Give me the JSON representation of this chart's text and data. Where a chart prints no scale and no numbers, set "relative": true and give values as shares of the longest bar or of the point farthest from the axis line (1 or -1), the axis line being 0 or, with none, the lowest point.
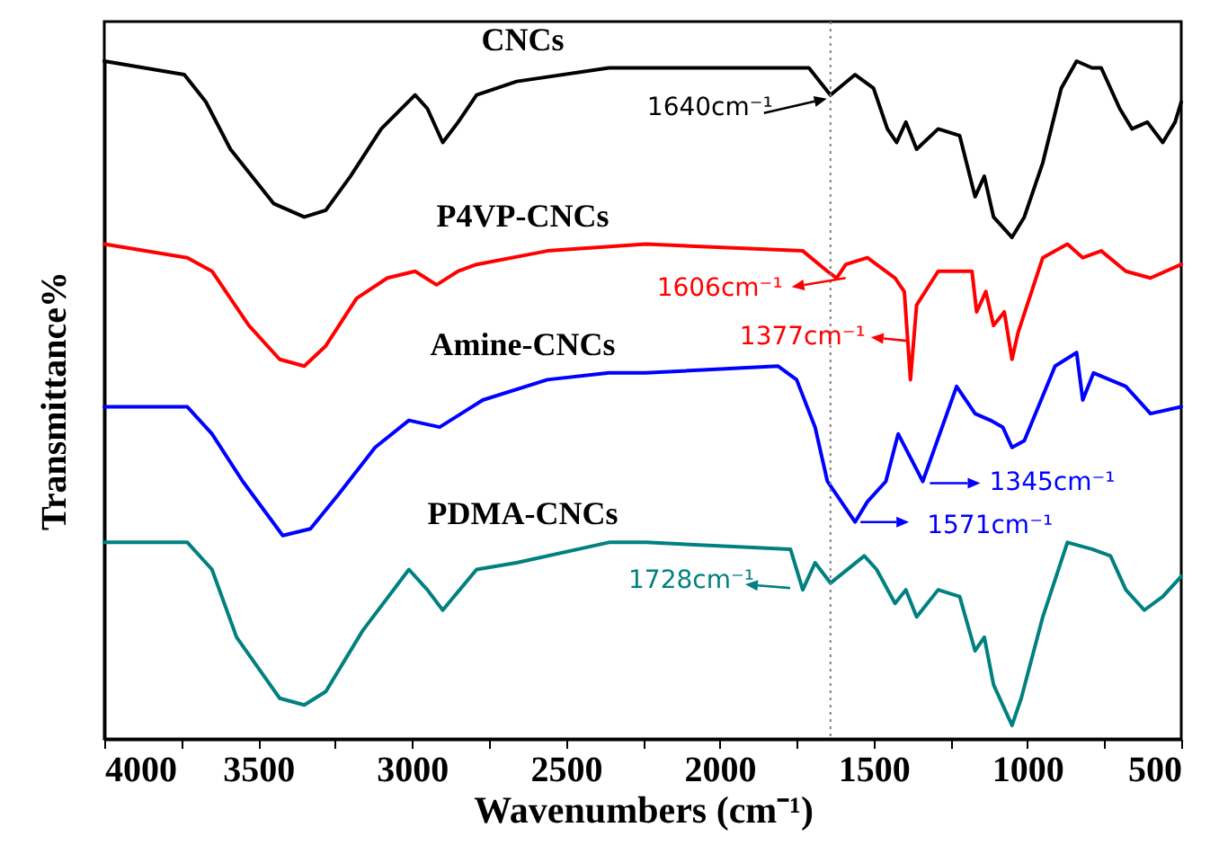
{
  "chart_data": {
    "type": "line",
    "relative": true,
    "xlabel": "Wavenumbers (cm⁻¹)",
    "ylabel": "Transmittance%",
    "xlim": [
      4000,
      500
    ],
    "xticks": [
      4000,
      {
        "value": 3750,
        "label": null
      },
      3500,
      {
        "value": 3250,
        "label": null
      },
      3000,
      {
        "value": 2750,
        "label": null
      },
      2500,
      {
        "value": 2250,
        "label": null
      },
      2000,
      {
        "value": 1750,
        "label": null
      },
      1500,
      {
        "value": 1250,
        "label": null
      },
      1000,
      {
        "value": 750,
        "label": null
      },
      500
    ],
    "ref_lines": [
      {
        "axis": "x",
        "value": 1640,
        "color": "#808080",
        "line_style": "dotted"
      }
    ],
    "series": [
      {
        "name": "CNCs",
        "color": "#000000",
        "x": [
          4000,
          3740,
          3670,
          3590,
          3450,
          3350,
          3280,
          3200,
          3100,
          2990,
          2950,
          2900,
          2850,
          2790,
          2660,
          2360,
          2240,
          1940,
          1710,
          1640,
          1560,
          1500,
          1455,
          1425,
          1395,
          1360,
          1290,
          1220,
          1170,
          1140,
          1110,
          1050,
          1010,
          950,
          890,
          840,
          790,
          760,
          700,
          660,
          610,
          560,
          520,
          500
        ],
        "values": [
          1.0,
          0.98,
          0.94,
          0.87,
          0.79,
          0.77,
          0.78,
          0.83,
          0.9,
          0.95,
          0.93,
          0.88,
          0.91,
          0.95,
          0.97,
          0.99,
          0.99,
          0.99,
          0.99,
          0.95,
          0.98,
          0.96,
          0.9,
          0.88,
          0.91,
          0.87,
          0.9,
          0.89,
          0.8,
          0.83,
          0.77,
          0.74,
          0.77,
          0.85,
          0.96,
          1.0,
          0.99,
          0.99,
          0.93,
          0.9,
          0.91,
          0.88,
          0.91,
          0.94
        ]
      },
      {
        "name": "P4VP-CNCs",
        "color": "#ff0000",
        "x": [
          4000,
          3730,
          3650,
          3530,
          3430,
          3350,
          3280,
          3180,
          3080,
          2990,
          2920,
          2850,
          2790,
          2560,
          2240,
          1730,
          1650,
          1620,
          1590,
          1520,
          1430,
          1400,
          1380,
          1360,
          1290,
          1180,
          1165,
          1135,
          1110,
          1075,
          1050,
          1030,
          950,
          870,
          820,
          760,
          680,
          600,
          500
        ],
        "values": [
          0.73,
          0.71,
          0.69,
          0.61,
          0.56,
          0.55,
          0.58,
          0.65,
          0.68,
          0.69,
          0.67,
          0.69,
          0.7,
          0.72,
          0.73,
          0.72,
          0.69,
          0.68,
          0.7,
          0.71,
          0.68,
          0.66,
          0.53,
          0.64,
          0.69,
          0.69,
          0.63,
          0.66,
          0.61,
          0.63,
          0.56,
          0.6,
          0.71,
          0.73,
          0.71,
          0.72,
          0.69,
          0.68,
          0.7
        ]
      },
      {
        "name": "Amine-CNCs",
        "color": "#0000ff",
        "x": [
          4000,
          3730,
          3650,
          3550,
          3420,
          3330,
          3240,
          3120,
          3010,
          2910,
          2770,
          2560,
          2360,
          2240,
          1810,
          1750,
          1690,
          1650,
          1560,
          1520,
          1460,
          1420,
          1340,
          1230,
          1170,
          1120,
          1080,
          1050,
          1010,
          910,
          840,
          820,
          785,
          680,
          600,
          500
        ],
        "values": [
          0.49,
          0.49,
          0.45,
          0.38,
          0.3,
          0.31,
          0.36,
          0.43,
          0.47,
          0.46,
          0.5,
          0.53,
          0.54,
          0.54,
          0.55,
          0.53,
          0.46,
          0.38,
          0.32,
          0.35,
          0.38,
          0.45,
          0.38,
          0.52,
          0.48,
          0.47,
          0.46,
          0.43,
          0.44,
          0.55,
          0.57,
          0.5,
          0.54,
          0.52,
          0.48,
          0.49
        ]
      },
      {
        "name": "PDMA-CNCs",
        "color": "#008080",
        "x": [
          4000,
          3730,
          3650,
          3570,
          3430,
          3350,
          3280,
          3160,
          3010,
          2950,
          2900,
          2790,
          2660,
          2360,
          2240,
          1770,
          1730,
          1690,
          1640,
          1530,
          1490,
          1430,
          1395,
          1360,
          1290,
          1220,
          1170,
          1140,
          1110,
          1050,
          1020,
          950,
          870,
          790,
          730,
          680,
          620,
          560,
          500
        ],
        "values": [
          0.29,
          0.29,
          0.25,
          0.15,
          0.06,
          0.05,
          0.07,
          0.16,
          0.25,
          0.22,
          0.19,
          0.25,
          0.26,
          0.29,
          0.29,
          0.28,
          0.22,
          0.26,
          0.23,
          0.27,
          0.25,
          0.2,
          0.22,
          0.18,
          0.22,
          0.21,
          0.13,
          0.15,
          0.08,
          0.02,
          0.06,
          0.18,
          0.29,
          0.28,
          0.27,
          0.22,
          0.19,
          0.21,
          0.24
        ]
      }
    ],
    "annotations": [
      {
        "text": "1640cm⁻¹",
        "x": 1640,
        "y": 0.95
      },
      {
        "text": "1606cm⁻¹",
        "x": 1620,
        "y": 0.68
      },
      {
        "text": "1377cm⁻¹",
        "x": 1380,
        "y": 0.59
      },
      {
        "text": "1345cm⁻¹",
        "x": 1340,
        "y": 0.38
      },
      {
        "text": "1571cm⁻¹",
        "x": 1560,
        "y": 0.32
      },
      {
        "text": "1728cm⁻¹",
        "x": 1730,
        "y": 0.22
      }
    ]
  }
}
